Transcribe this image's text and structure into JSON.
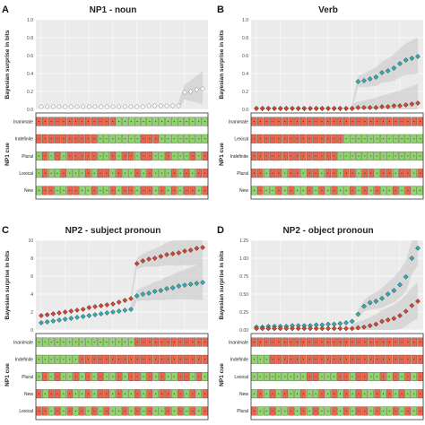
{
  "colors": {
    "blue": "#2ab0b8",
    "red": "#d9442a",
    "grey": "#9a9a9a",
    "band": "#c9c9c9",
    "green_cell": "#8fd36a",
    "red_cell": "#e8674c",
    "panel_bg": "#ebebeb"
  },
  "chart_data": [
    {
      "type": "scatter",
      "panel_letter": "A",
      "title": "NP1 - noun",
      "ylabel": "Bayesian surprise in bits",
      "cue_axis_label": "NP1 cue",
      "ylim": [
        0,
        1.0
      ],
      "yticks": [
        "0.0",
        "0.2",
        "0.4",
        "0.6",
        "0.8",
        "1.0"
      ],
      "grid": true,
      "series": [
        {
          "color": "grey",
          "values": [
            0.03,
            0.03,
            0.03,
            0.03,
            0.03,
            0.03,
            0.03,
            0.03,
            0.03,
            0.03,
            0.03,
            0.03,
            0.03,
            0.03,
            0.03,
            0.03,
            0.03,
            0.03,
            0.04,
            0.04,
            0.04,
            0.04,
            0.04,
            0.04,
            0.19,
            0.2,
            0.22,
            0.23
          ],
          "band": [
            [
              0.22,
              0.3
            ],
            [
              0.16,
              0.27
            ]
          ]
        }
      ],
      "cues": [
        {
          "label": "Inanimate",
          "pattern": "RRRRRRRRRRRRRGGGGGGGGGGGGGGG"
        },
        {
          "label": "Indefinite",
          "pattern": "RRRRRRRRRRGGGGGGGRRRGGGGGGGG"
        },
        {
          "label": "Plural",
          "pattern": "GRGRGRRRRRGGRGRRGRRGGRGGGRGR"
        },
        {
          "label": "Lexical",
          "pattern": "GRGGRGGGRGRRGRGGRGRGGGRGRGRR"
        },
        {
          "label": "New",
          "pattern": "GRRGGRRGGRGGRGRRGRRGRGRGRRGR"
        }
      ]
    },
    {
      "type": "scatter",
      "panel_letter": "B",
      "title": "Verb",
      "ylabel": "Bayesian surprise in bits",
      "cue_axis_label": "NP1 cue",
      "ylim": [
        0,
        1.0
      ],
      "yticks": [
        "0.0",
        "0.2",
        "0.4",
        "0.6",
        "0.8",
        "1.0"
      ],
      "grid": true,
      "series": [
        {
          "color": "blue",
          "values": [
            0.01,
            0.01,
            0.01,
            0.01,
            0.01,
            0.01,
            0.01,
            0.01,
            0.01,
            0.01,
            0.01,
            0.01,
            0.01,
            0.01,
            0.01,
            0.01,
            0.01,
            0.31,
            0.32,
            0.34,
            0.36,
            0.41,
            0.43,
            0.46,
            0.51,
            0.55,
            0.57,
            0.59
          ]
        },
        {
          "color": "red",
          "values": [
            0.01,
            0.01,
            0.01,
            0.01,
            0.01,
            0.01,
            0.01,
            0.01,
            0.01,
            0.01,
            0.01,
            0.01,
            0.01,
            0.01,
            0.01,
            0.01,
            0.01,
            0.02,
            0.02,
            0.02,
            0.02,
            0.03,
            0.03,
            0.04,
            0.04,
            0.05,
            0.06,
            0.07
          ]
        }
      ],
      "cues": [
        {
          "label": "Inanimate",
          "pattern": "RRRRRRRRRRRRRRRRRRRRRRRRRRRR"
        },
        {
          "label": "Lexical",
          "pattern": "RRRRRRRRRRRRRRRGGGGGGGGGGGGG"
        },
        {
          "label": "Indefinite",
          "pattern": "RRRRRRRRRRRRRRGGGGGGGGGGGGGG"
        },
        {
          "label": "Plural",
          "pattern": "RRGRRGRRGRRGRRGRRGRRGRRGRRGR"
        },
        {
          "label": "New",
          "pattern": "GRGGRGRGGRGRGRGGRGRGRGGRGRGG"
        }
      ]
    },
    {
      "type": "scatter",
      "panel_letter": "C",
      "title": "NP2 - subject pronoun",
      "ylabel": "Bayesian surprise in bits",
      "cue_axis_label": "NP1 cue",
      "ylim": [
        0,
        10
      ],
      "yticks": [
        "0",
        "2",
        "4",
        "6",
        "8",
        "10"
      ],
      "grid": true,
      "series": [
        {
          "color": "red",
          "values": [
            1.6,
            1.7,
            1.8,
            1.9,
            2.0,
            2.1,
            2.2,
            2.3,
            2.5,
            2.6,
            2.7,
            2.8,
            2.9,
            3.1,
            3.3,
            3.5,
            7.4,
            7.7,
            7.9,
            8.0,
            8.2,
            8.4,
            8.5,
            8.6,
            8.8,
            8.9,
            9.1,
            9.2
          ]
        },
        {
          "color": "blue",
          "values": [
            0.8,
            0.9,
            1.0,
            1.1,
            1.2,
            1.3,
            1.4,
            1.5,
            1.6,
            1.7,
            1.8,
            1.9,
            2.0,
            2.1,
            2.2,
            2.3,
            3.8,
            4.0,
            4.1,
            4.3,
            4.4,
            4.6,
            4.7,
            4.9,
            5.0,
            5.1,
            5.2,
            5.3
          ]
        }
      ],
      "cues": [
        {
          "label": "Inanimate",
          "pattern": "GGGGGGGGGGGGGGGGRRRRRRRRRRRR"
        },
        {
          "label": "Indefinite",
          "pattern": "GGGGGGGRRRRRRRRRRRRRRRRRRRRR"
        },
        {
          "label": "Plural",
          "pattern": "GRGRGGRGRGRGGRGRRGRGRGGRRGRG"
        },
        {
          "label": "New",
          "pattern": "RGRRGRGGRGRRGRGGRGRGRRGRGRGR"
        },
        {
          "label": "Lexical",
          "pattern": "RRGRGRGRGRGRGGRGRGRGGRGRGRGR"
        }
      ]
    },
    {
      "type": "scatter",
      "panel_letter": "D",
      "title": "NP2 - object pronoun",
      "ylabel": "Bayesian surprise in bits",
      "cue_axis_label": "NP1 cue",
      "ylim": [
        0,
        1.25
      ],
      "yticks": [
        "0.00",
        "0.25",
        "0.50",
        "0.75",
        "1.00",
        "1.25"
      ],
      "grid": true,
      "series": [
        {
          "color": "blue",
          "values": [
            0.04,
            0.04,
            0.05,
            0.05,
            0.05,
            0.05,
            0.06,
            0.06,
            0.06,
            0.06,
            0.07,
            0.07,
            0.08,
            0.08,
            0.09,
            0.1,
            0.12,
            0.22,
            0.33,
            0.38,
            0.4,
            0.44,
            0.5,
            0.55,
            0.63,
            0.74,
            1.0,
            1.14
          ]
        },
        {
          "color": "red",
          "values": [
            0.02,
            0.02,
            0.02,
            0.02,
            0.02,
            0.02,
            0.02,
            0.02,
            0.02,
            0.02,
            0.02,
            0.02,
            0.02,
            0.02,
            0.02,
            0.02,
            0.02,
            0.03,
            0.04,
            0.06,
            0.08,
            0.12,
            0.14,
            0.16,
            0.2,
            0.26,
            0.34,
            0.4
          ]
        }
      ],
      "cues": [
        {
          "label": "Inanimate",
          "pattern": "RRRRRRRRRRRRRRRRRRRRRRRRRRRR"
        },
        {
          "label": "Indefinite",
          "pattern": "GGGRRRRRRRRRRRRRRRRRRRRRRRRR"
        },
        {
          "label": "Lexical",
          "pattern": "GGGGGGGGGRRGGGRRGRRGGRGRGRGR"
        },
        {
          "label": "New",
          "pattern": "GRGRGRGGRGGRGRGRGRGGRGRGRGGR"
        },
        {
          "label": "Plural",
          "pattern": "RGGRGGRGRGRGGRGRGRRGRGGRGRGR"
        }
      ]
    }
  ]
}
